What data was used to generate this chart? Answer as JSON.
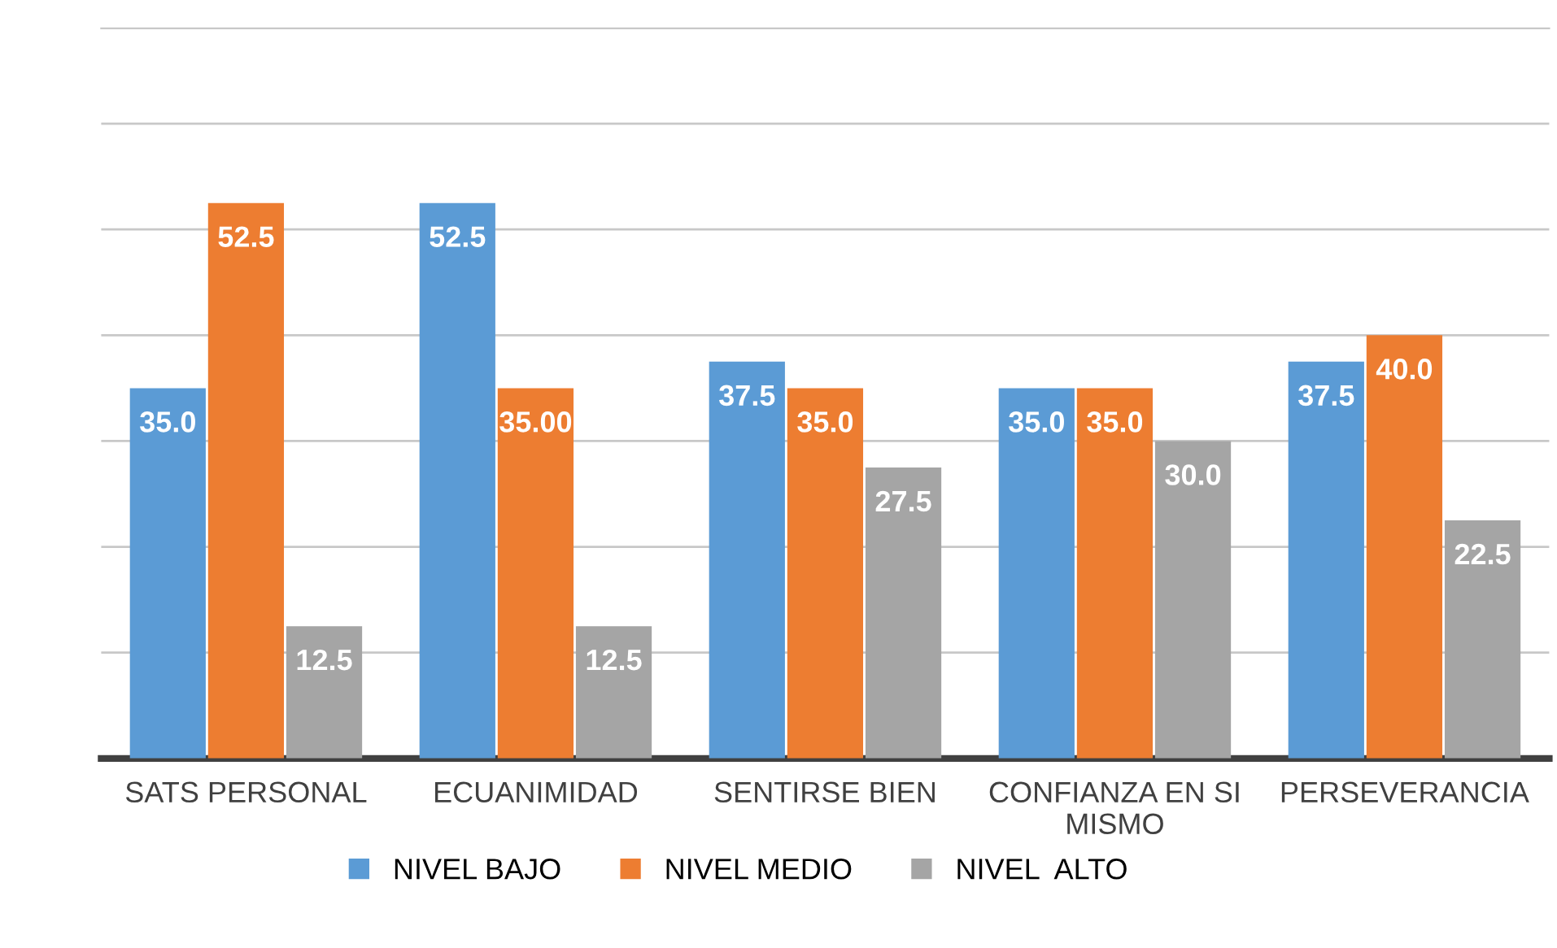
{
  "chart_data": {
    "type": "bar",
    "categories": [
      "SATS PERSONAL",
      "ECUANIMIDAD",
      "SENTIRSE BIEN",
      "CONFIANZA EN SI\nMISMO",
      "PERSEVERANCIA"
    ],
    "series": [
      {
        "name": "NIVEL BAJO",
        "color": "#5b9bd5",
        "values": [
          35.0,
          52.5,
          37.5,
          35.0,
          37.5
        ],
        "value_labels": [
          "35.0",
          "52.5",
          "37.5",
          "35.0",
          "37.5"
        ]
      },
      {
        "name": "NIVEL MEDIO",
        "color": "#ed7d31",
        "values": [
          52.5,
          35.0,
          35.0,
          35.0,
          40.0
        ],
        "value_labels": [
          "52.5",
          "35.00",
          "35.0",
          "35.0",
          "40.0"
        ]
      },
      {
        "name": "NIVEL  ALTO",
        "color": "#a5a5a5",
        "values": [
          12.5,
          12.5,
          27.5,
          30.0,
          22.5
        ],
        "value_labels": [
          "12.5",
          "12.5",
          "27.5",
          "30.0",
          "22.5"
        ]
      }
    ],
    "ylim": [
      0,
      69
    ],
    "yticks": [
      {
        "value": 10,
        "label": null
      },
      {
        "value": 20,
        "label": null
      },
      {
        "value": 30,
        "label": null
      },
      {
        "value": 40,
        "label": null
      },
      {
        "value": 50,
        "label": null
      },
      {
        "value": 60,
        "label": null
      }
    ],
    "tick_labels": "x",
    "grid": "y",
    "legend": "bottom"
  }
}
